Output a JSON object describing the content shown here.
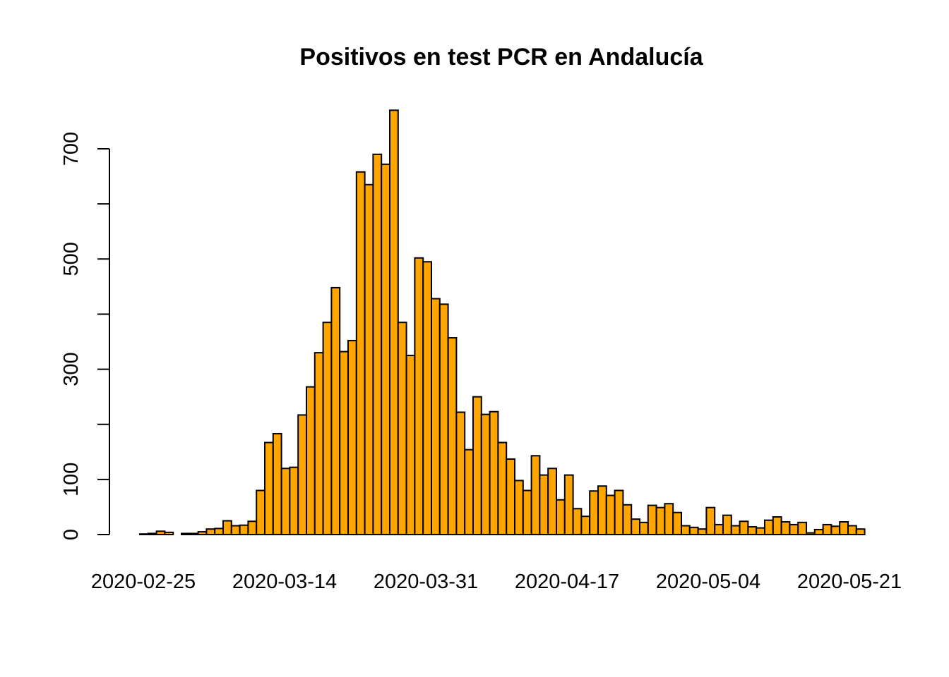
{
  "chart_data": {
    "type": "bar",
    "title": "Positivos en test PCR en Andalucía",
    "xlabel": "",
    "ylabel": "",
    "ylim": [
      0,
      770
    ],
    "yticks": [
      0,
      100,
      200,
      300,
      400,
      500,
      600,
      700
    ],
    "ytick_labels": [
      "0",
      "100",
      "",
      "300",
      "",
      "500",
      "",
      "700"
    ],
    "x_start": "2020-02-25",
    "x_end": "2020-05-21",
    "x_tick_labels": [
      "2020-02-25",
      "2020-03-14",
      "2020-03-31",
      "2020-04-17",
      "2020-05-04",
      "2020-05-21"
    ],
    "bar_color": "#FFA500",
    "border_color": "#000000",
    "series": [
      {
        "values": [
          1,
          2,
          6,
          4,
          0,
          2,
          2,
          5,
          10,
          11,
          25,
          16,
          17,
          24,
          80,
          167,
          183,
          120,
          122,
          217,
          268,
          330,
          385,
          448,
          332,
          352,
          658,
          635,
          690,
          672,
          770,
          385,
          325,
          502,
          495,
          428,
          418,
          357,
          222,
          154,
          250,
          218,
          223,
          167,
          137,
          98,
          80,
          143,
          108,
          120,
          63,
          108,
          47,
          33,
          79,
          88,
          71,
          80,
          54,
          28,
          22,
          53,
          49,
          56,
          40,
          16,
          13,
          10,
          49,
          18,
          35,
          16,
          24,
          14,
          12,
          26,
          32,
          23,
          18,
          22,
          3,
          9,
          18,
          15,
          23,
          16,
          10
        ]
      }
    ]
  }
}
